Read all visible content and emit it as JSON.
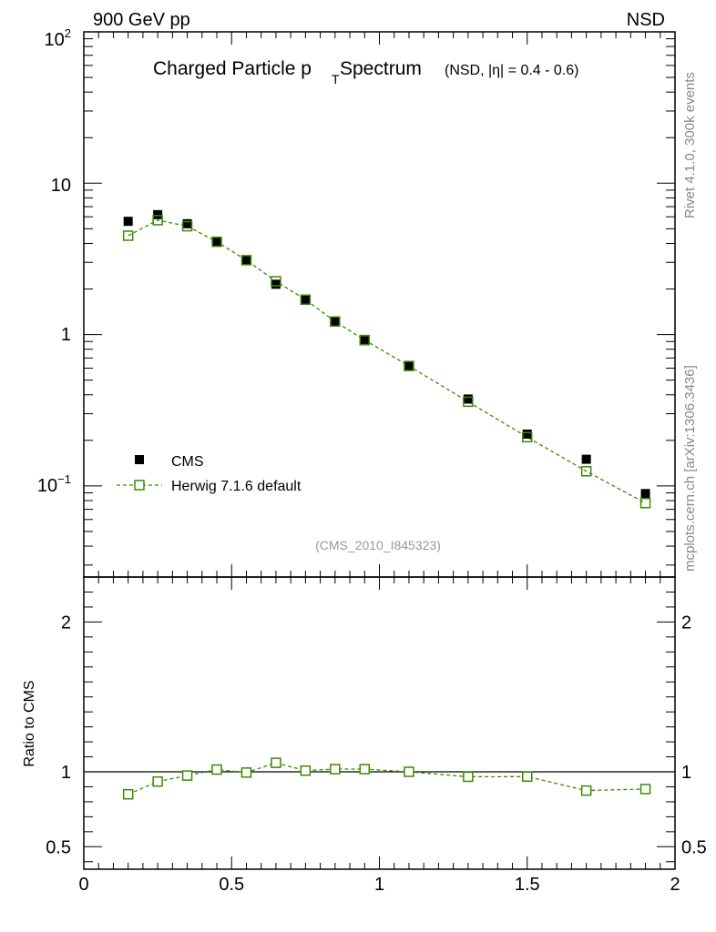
{
  "header": {
    "energy_label": "900 GeV pp",
    "process_label": "NSD"
  },
  "side_text": {
    "rivet": "Rivet 4.1.0,  300k events",
    "source": "mcplots.cern.ch [arXiv:1306.3436]"
  },
  "analysis_label": "(CMS_2010_I845323)",
  "chart_data": [
    {
      "type": "scatter",
      "panel": "main",
      "title_main": "Charged Particle p",
      "title_sub": "T",
      "title_tail": " Spectrum",
      "title_extra": "(NSD, |η| = 0.4 - 0.6)",
      "xlabel": "",
      "ylabel": "",
      "yscale": "log",
      "xlim": [
        0,
        2
      ],
      "ylim": [
        0.025,
        100
      ],
      "y_tick_labels": {
        "decade_10": "10",
        "decade_1": "1",
        "top_base": "10",
        "top_exp": "2",
        "bottom_base": "10",
        "bottom_exp": "−1"
      },
      "legend_position": "lower-left",
      "series": [
        {
          "name": "CMS",
          "marker": "filled-square",
          "color": "#000000",
          "x": [
            0.15,
            0.25,
            0.35,
            0.45,
            0.55,
            0.65,
            0.75,
            0.85,
            0.95,
            1.1,
            1.3,
            1.5,
            1.7,
            1.9
          ],
          "y": [
            5.6,
            6.2,
            5.4,
            4.1,
            3.1,
            2.15,
            1.7,
            1.22,
            0.91,
            0.62,
            0.375,
            0.22,
            0.15,
            0.089
          ]
        },
        {
          "name": "Herwig 7.1.6 default",
          "marker": "open-square",
          "line": "dashed",
          "color": "#3a8a00",
          "x": [
            0.15,
            0.25,
            0.35,
            0.45,
            0.55,
            0.65,
            0.75,
            0.85,
            0.95,
            1.1,
            1.3,
            1.5,
            1.7,
            1.9
          ],
          "y": [
            4.5,
            5.7,
            5.2,
            4.1,
            3.1,
            2.25,
            1.7,
            1.22,
            0.92,
            0.62,
            0.36,
            0.21,
            0.125,
            0.077
          ]
        }
      ]
    },
    {
      "type": "line",
      "panel": "ratio",
      "ylabel": "Ratio to CMS",
      "xlim": [
        0,
        2
      ],
      "ylim": [
        0.35,
        2.3
      ],
      "y_ticks": [
        0.5,
        1,
        2
      ],
      "y_tick_labels": [
        "0.5",
        "1",
        "2"
      ],
      "x_ticks": [
        0,
        0.5,
        1,
        1.5,
        2
      ],
      "x_tick_labels": [
        "0",
        "0.5",
        "1",
        "1.5",
        "2"
      ],
      "reference_line": 1,
      "series": [
        {
          "name": "Herwig 7.1.6 default",
          "marker": "open-square",
          "line": "dashed",
          "color": "#3a8a00",
          "x": [
            0.15,
            0.25,
            0.35,
            0.45,
            0.55,
            0.65,
            0.75,
            0.85,
            0.95,
            1.1,
            1.3,
            1.5,
            1.7,
            1.9
          ],
          "y": [
            0.85,
            0.935,
            0.975,
            1.015,
            0.995,
            1.06,
            1.008,
            1.018,
            1.018,
            1.0,
            0.967,
            0.968,
            0.875,
            0.885
          ]
        }
      ]
    }
  ]
}
